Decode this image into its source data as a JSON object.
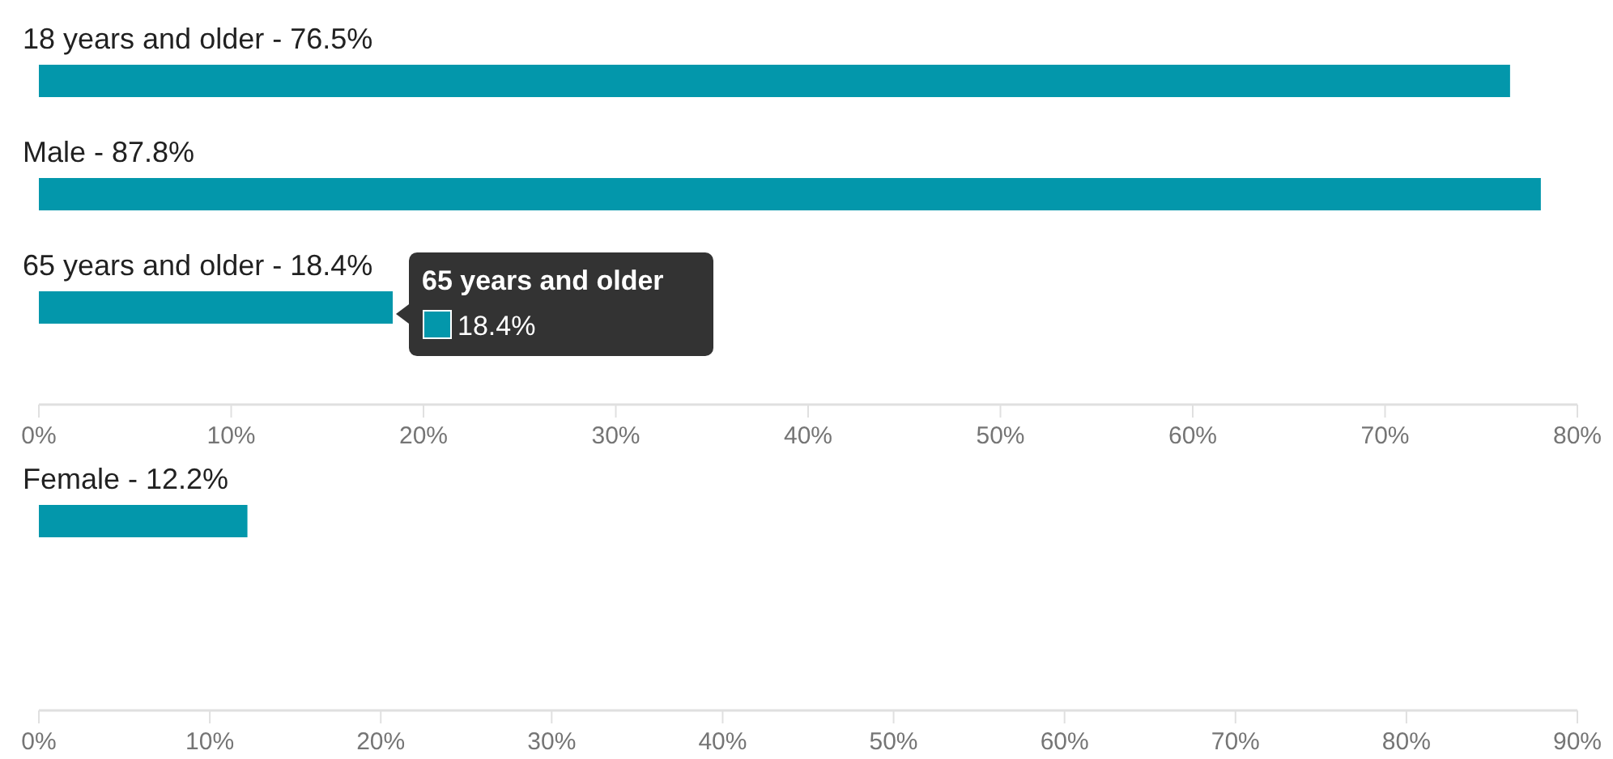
{
  "chart_data": [
    {
      "type": "bar",
      "orientation": "horizontal",
      "categories": [
        "18 years and older - 76.5%",
        "Male - 87.8%",
        "65 years and older - 18.4%"
      ],
      "values": [
        76.5,
        78.1,
        18.4
      ],
      "color": "#0397ab",
      "xlim": [
        0,
        80
      ],
      "xticks": [
        {
          "value": 0,
          "label": "0%"
        },
        {
          "value": 10,
          "label": "10%"
        },
        {
          "value": 20,
          "label": "20%"
        },
        {
          "value": 30,
          "label": "30%"
        },
        {
          "value": 40,
          "label": "40%"
        },
        {
          "value": 50,
          "label": "50%"
        },
        {
          "value": 60,
          "label": "60%"
        },
        {
          "value": 70,
          "label": "70%"
        },
        {
          "value": 80,
          "label": "80%"
        }
      ],
      "grid": false,
      "annotations": [
        "65 years and older",
        "18.4%"
      ]
    },
    {
      "type": "bar",
      "orientation": "horizontal",
      "categories": [
        "Female - 12.2%"
      ],
      "values": [
        12.2
      ],
      "color": "#0397ab",
      "xlim": [
        0,
        90
      ],
      "xticks": [
        {
          "value": 0,
          "label": "0%"
        },
        {
          "value": 10,
          "label": "10%"
        },
        {
          "value": 20,
          "label": "20%"
        },
        {
          "value": 30,
          "label": "30%"
        },
        {
          "value": 40,
          "label": "40%"
        },
        {
          "value": 50,
          "label": "50%"
        },
        {
          "value": 60,
          "label": "60%"
        },
        {
          "value": 70,
          "label": "70%"
        },
        {
          "value": 80,
          "label": "80%"
        },
        {
          "value": 90,
          "label": "90%"
        }
      ],
      "grid": false
    }
  ]
}
